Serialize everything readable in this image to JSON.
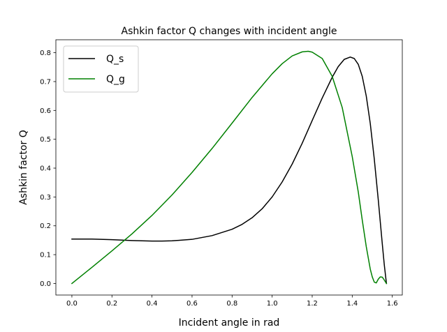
{
  "chart_data": {
    "type": "line",
    "title": "Ashkin factor Q changes with incident angle",
    "xlabel": "Incident angle in rad",
    "ylabel": "Ashkin factor Q",
    "xlim": [
      -0.08,
      1.65
    ],
    "ylim": [
      -0.04,
      0.845
    ],
    "xticks": [
      "0.0",
      "0.2",
      "0.4",
      "0.6",
      "0.8",
      "1.0",
      "1.2",
      "1.4",
      "1.6"
    ],
    "yticks": [
      "0.0",
      "0.1",
      "0.2",
      "0.3",
      "0.4",
      "0.5",
      "0.6",
      "0.7",
      "0.8"
    ],
    "grid": false,
    "legend_position": "top-left",
    "series": [
      {
        "name": "Q_s",
        "color": "#000000",
        "x": [
          0.0,
          0.1,
          0.2,
          0.3,
          0.4,
          0.45,
          0.5,
          0.6,
          0.7,
          0.8,
          0.85,
          0.9,
          0.95,
          1.0,
          1.05,
          1.1,
          1.15,
          1.2,
          1.25,
          1.3,
          1.33,
          1.36,
          1.39,
          1.41,
          1.43,
          1.45,
          1.47,
          1.49,
          1.51,
          1.53,
          1.55,
          1.56,
          1.5708
        ],
        "y": [
          0.154,
          0.154,
          0.152,
          0.149,
          0.147,
          0.147,
          0.148,
          0.153,
          0.166,
          0.188,
          0.205,
          0.228,
          0.259,
          0.3,
          0.352,
          0.414,
          0.486,
          0.565,
          0.643,
          0.715,
          0.752,
          0.777,
          0.785,
          0.78,
          0.76,
          0.718,
          0.65,
          0.555,
          0.432,
          0.29,
          0.138,
          0.065,
          0.0
        ]
      },
      {
        "name": "Q_g",
        "color": "#008000",
        "x": [
          0.0,
          0.1,
          0.2,
          0.3,
          0.4,
          0.5,
          0.6,
          0.7,
          0.8,
          0.9,
          1.0,
          1.05,
          1.1,
          1.15,
          1.18,
          1.2,
          1.25,
          1.3,
          1.35,
          1.4,
          1.43,
          1.45,
          1.47,
          1.49,
          1.5,
          1.51,
          1.52,
          1.53,
          1.54,
          1.55,
          1.56,
          1.5708
        ],
        "y": [
          0.0,
          0.056,
          0.113,
          0.172,
          0.236,
          0.307,
          0.385,
          0.468,
          0.556,
          0.645,
          0.727,
          0.762,
          0.789,
          0.803,
          0.805,
          0.802,
          0.78,
          0.718,
          0.61,
          0.44,
          0.318,
          0.22,
          0.128,
          0.05,
          0.023,
          0.005,
          0.002,
          0.015,
          0.023,
          0.022,
          0.012,
          0.0
        ]
      }
    ]
  }
}
